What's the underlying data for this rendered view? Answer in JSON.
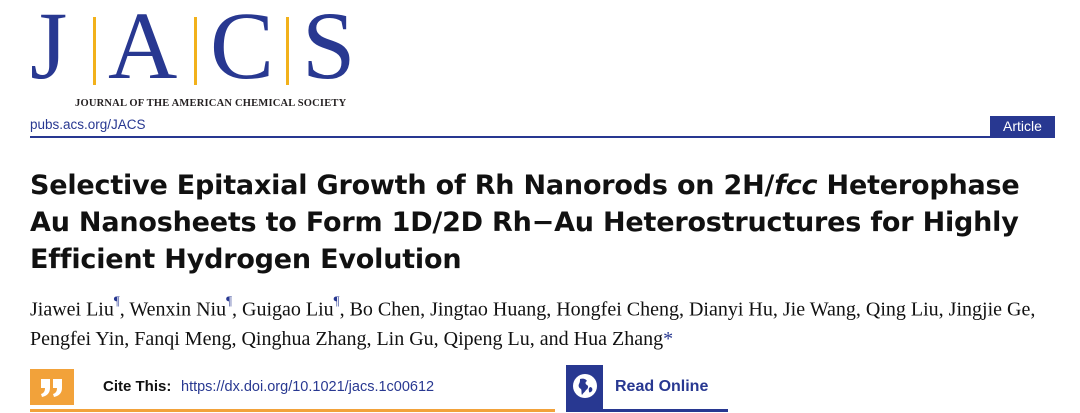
{
  "journal": {
    "letters": [
      "J",
      "A",
      "C",
      "S"
    ],
    "tagline": "JOURNAL OF THE AMERICAN CHEMICAL SOCIETY",
    "url": "pubs.acs.org/JACS",
    "article_type": "Article"
  },
  "title": {
    "part1": "Selective Epitaxial Growth of Rh Nanorods on 2H/",
    "italic": "fcc",
    "part2": " Heterophase Au Nanosheets to Form 1D/2D Rh−Au Heterostructures for Highly Efficient Hydrogen Evolution"
  },
  "authors": [
    {
      "name": "Jiawei Liu",
      "mark": "¶"
    },
    {
      "name": "Wenxin Niu",
      "mark": "¶"
    },
    {
      "name": "Guigao Liu",
      "mark": "¶"
    },
    {
      "name": "Bo Chen",
      "mark": ""
    },
    {
      "name": "Jingtao Huang",
      "mark": ""
    },
    {
      "name": "Hongfei Cheng",
      "mark": ""
    },
    {
      "name": "Dianyi Hu",
      "mark": ""
    },
    {
      "name": "Jie Wang",
      "mark": ""
    },
    {
      "name": "Qing Liu",
      "mark": ""
    },
    {
      "name": "Jingjie Ge",
      "mark": ""
    },
    {
      "name": "Pengfei Yin",
      "mark": ""
    },
    {
      "name": "Fanqi Meng",
      "mark": ""
    },
    {
      "name": "Qinghua Zhang",
      "mark": ""
    },
    {
      "name": "Lin Gu",
      "mark": ""
    },
    {
      "name": "Qipeng Lu",
      "mark": ""
    },
    {
      "name": "Hua Zhang",
      "mark": "*"
    }
  ],
  "authors_conjunction": "and",
  "cite": {
    "label": "Cite This:",
    "doi": "https://dx.doi.org/10.1021/jacs.1c00612",
    "icon": "quote-icon"
  },
  "read_online": {
    "label": "Read Online",
    "icon": "globe-icon"
  },
  "colors": {
    "brand_blue": "#283891",
    "brand_gold": "#f2b11b",
    "cite_orange": "#f2a23a"
  }
}
